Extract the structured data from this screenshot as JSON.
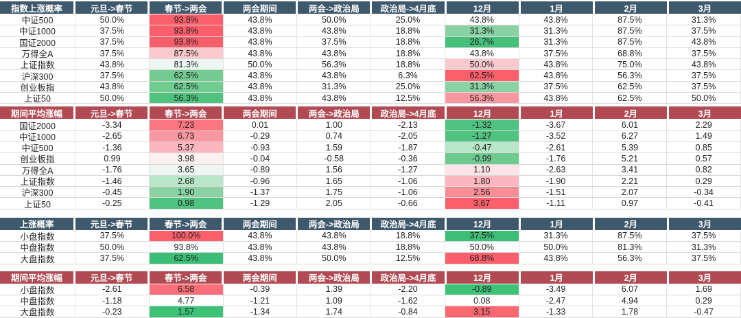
{
  "palette": {
    "header_blue": "#3E586C",
    "header_red": "#B14A52",
    "strong_red": "#FA5F6B",
    "strong_green": "#3DBE76",
    "grid_line": "#D9D9D9",
    "cell_text": "#1F1F1F",
    "header_text": "#FFFFFF"
  },
  "chart_data": [
    {
      "type": "table",
      "title": "指数上涨概率",
      "header_style": "blue",
      "columns": [
        "元旦->春节",
        "春节->两会",
        "两会期间",
        "两会->政治局",
        "政治局->4月底",
        "12月",
        "1月",
        "2月",
        "3月"
      ],
      "rows": [
        {
          "label": "中证500",
          "values": [
            "50.0%",
            "93.8%",
            "43.8%",
            "50.0%",
            "25.0%",
            "43.8%",
            "43.8%",
            "87.5%",
            "31.3%"
          ],
          "cell_colors": [
            null,
            "#FA5F6B",
            null,
            null,
            null,
            null,
            null,
            null,
            null
          ]
        },
        {
          "label": "中证1000",
          "values": [
            "37.5%",
            "93.8%",
            "43.8%",
            "43.8%",
            "18.8%",
            "31.3%",
            "31.3%",
            "87.5%",
            "37.5%"
          ],
          "cell_colors": [
            null,
            "#FA5F6B",
            null,
            null,
            null,
            "#8AD2A4",
            null,
            null,
            null
          ]
        },
        {
          "label": "国证2000",
          "values": [
            "37.5%",
            "93.8%",
            "43.8%",
            "37.5%",
            "18.8%",
            "26.7%",
            "31.3%",
            "87.5%",
            "43.8%"
          ],
          "cell_colors": [
            null,
            "#FA5F6B",
            null,
            null,
            null,
            "#44C07A",
            null,
            null,
            null
          ]
        },
        {
          "label": "万得全A",
          "values": [
            "37.5%",
            "87.5%",
            "43.8%",
            "43.8%",
            "18.8%",
            "43.8%",
            "37.5%",
            "68.8%",
            "37.5%"
          ],
          "cell_colors": [
            null,
            "#FBC9CE",
            null,
            null,
            null,
            null,
            null,
            null,
            null
          ]
        },
        {
          "label": "上证指数",
          "values": [
            "43.8%",
            "81.3%",
            "50.0%",
            "56.3%",
            "18.8%",
            "50.0%",
            "43.8%",
            "75.0%",
            "43.8%"
          ],
          "cell_colors": [
            null,
            "#EDF6F0",
            null,
            null,
            null,
            "#FBC9CE",
            null,
            null,
            null
          ]
        },
        {
          "label": "沪深300",
          "values": [
            "37.5%",
            "62.5%",
            "43.8%",
            "43.8%",
            "6.3%",
            "62.5%",
            "43.8%",
            "56.3%",
            "37.5%"
          ],
          "cell_colors": [
            null,
            "#72CB91",
            null,
            null,
            null,
            "#FA5F6B",
            null,
            null,
            null
          ]
        },
        {
          "label": "创业板指",
          "values": [
            "43.8%",
            "62.5%",
            "43.8%",
            "31.3%",
            "25.0%",
            "31.3%",
            "37.5%",
            "62.5%",
            "37.5%"
          ],
          "cell_colors": [
            null,
            "#72CB91",
            null,
            null,
            null,
            "#8AD2A4",
            null,
            null,
            null
          ]
        },
        {
          "label": "上证50",
          "values": [
            "50.0%",
            "56.3%",
            "43.8%",
            "43.8%",
            "12.5%",
            "56.3%",
            "43.8%",
            "62.5%",
            "50.0%"
          ],
          "cell_colors": [
            null,
            "#4EC27E",
            null,
            null,
            null,
            "#FA97A0",
            null,
            null,
            null
          ]
        }
      ]
    },
    {
      "type": "table",
      "title": "期间平均涨幅",
      "header_style": "red",
      "columns": [
        "元旦->春节",
        "春节->两会",
        "两会期间",
        "两会->政治局",
        "政治局->4月底",
        "12月",
        "1月",
        "2月",
        "3月"
      ],
      "rows": [
        {
          "label": "国证2000",
          "values": [
            "-3.34",
            "7.23",
            "0.01",
            "1.00",
            "-2.13",
            "-1.32",
            "-3.67",
            "6.01",
            "2.29"
          ],
          "cell_colors": [
            null,
            "#FA7680",
            null,
            null,
            null,
            "#4EC27E",
            null,
            null,
            null
          ]
        },
        {
          "label": "中证1000",
          "values": [
            "-2.65",
            "6.73",
            "-0.29",
            "0.74",
            "-2.05",
            "-1.27",
            "-3.52",
            "6.27",
            "1.49"
          ],
          "cell_colors": [
            null,
            "#FA97A0",
            null,
            null,
            null,
            "#50C380",
            null,
            null,
            null
          ]
        },
        {
          "label": "中证500",
          "values": [
            "-1.36",
            "5.37",
            "-0.93",
            "1.59",
            "-1.87",
            "-0.47",
            "-2.61",
            "5.39",
            "0.85"
          ],
          "cell_colors": [
            null,
            "#FBB7BD",
            null,
            null,
            null,
            "#B9E6C9",
            null,
            null,
            null
          ]
        },
        {
          "label": "创业板指",
          "values": [
            "0.99",
            "3.98",
            "-0.04",
            "-0.58",
            "-0.36",
            "-0.99",
            "-1.76",
            "5.21",
            "0.57"
          ],
          "cell_colors": [
            null,
            "#FDF0F1",
            null,
            null,
            null,
            "#6FCA90",
            null,
            null,
            null
          ]
        },
        {
          "label": "万得全A",
          "values": [
            "-1.76",
            "3.65",
            "-0.89",
            "1.56",
            "-1.27",
            "1.10",
            "-2.63",
            "3.41",
            "0.82"
          ],
          "cell_colors": [
            null,
            "#EDF6F0",
            null,
            null,
            null,
            "#FCE4E6",
            null,
            null,
            null
          ]
        },
        {
          "label": "上证指数",
          "values": [
            "-1.46",
            "2.68",
            "-0.96",
            "1.65",
            "-1.06",
            "1.80",
            "-1.90",
            "2.21",
            "0.29"
          ],
          "cell_colors": [
            null,
            "#B9E6C9",
            null,
            null,
            null,
            "#FBB7BD",
            null,
            null,
            null
          ]
        },
        {
          "label": "沪深300",
          "values": [
            "-0.45",
            "1.90",
            "-1.37",
            "1.75",
            "-1.06",
            "2.56",
            "-1.51",
            "2.07",
            "-0.34"
          ],
          "cell_colors": [
            null,
            "#8AD2A4",
            null,
            null,
            null,
            "#FA8C95",
            null,
            null,
            null
          ]
        },
        {
          "label": "上证50",
          "values": [
            "-0.25",
            "0.98",
            "-1.29",
            "2.05",
            "-0.66",
            "3.67",
            "-1.11",
            "0.97",
            "-0.41"
          ],
          "cell_colors": [
            null,
            "#4EC27E",
            null,
            null,
            null,
            "#FA5F6B",
            null,
            null,
            null
          ]
        }
      ]
    },
    {
      "type": "table",
      "title": "上涨概率",
      "header_style": "blue",
      "columns": [
        "元旦->春节",
        "春节->两会",
        "两会期间",
        "两会->政治局",
        "政治局->4月底",
        "12月",
        "1月",
        "2月",
        "3月"
      ],
      "rows": [
        {
          "label": "小盘指数",
          "values": [
            "37.5%",
            "100.0%",
            "43.8%",
            "43.8%",
            "18.8%",
            "37.5%",
            "31.3%",
            "87.5%",
            "37.5%"
          ],
          "cell_colors": [
            null,
            "#FA5F6B",
            null,
            null,
            null,
            "#3DBE76",
            null,
            null,
            null
          ]
        },
        {
          "label": "中盘指数",
          "values": [
            "50.0%",
            "93.8%",
            "43.8%",
            "43.8%",
            "18.8%",
            "50.0%",
            "50.0%",
            "81.3%",
            "31.3%"
          ],
          "cell_colors": [
            null,
            null,
            null,
            null,
            null,
            null,
            null,
            null,
            null
          ]
        },
        {
          "label": "大盘指数",
          "values": [
            "37.5%",
            "62.5%",
            "43.8%",
            "50.0%",
            "12.5%",
            "68.8%",
            "43.8%",
            "56.3%",
            "37.5%"
          ],
          "cell_colors": [
            null,
            "#3DBE76",
            null,
            null,
            null,
            "#FA5F6B",
            null,
            null,
            null
          ]
        }
      ]
    },
    {
      "type": "table",
      "title": "期间平均涨幅",
      "header_style": "red",
      "columns": [
        "元旦->春节",
        "春节->两会",
        "两会期间",
        "两会->政治局",
        "政治局->4月底",
        "12月",
        "1月",
        "2月",
        "3月"
      ],
      "rows": [
        {
          "label": "小盘指数",
          "values": [
            "-2.61",
            "6.58",
            "-0.39",
            "1.39",
            "-2.20",
            "-0.89",
            "-3.49",
            "6.07",
            "1.69"
          ],
          "cell_colors": [
            null,
            "#FA6F79",
            null,
            null,
            null,
            "#3DC378",
            null,
            null,
            null
          ]
        },
        {
          "label": "中盘指数",
          "values": [
            "-1.18",
            "4.77",
            "-1.21",
            "1.09",
            "-1.62",
            "0.08",
            "-2.47",
            "4.94",
            "0.29"
          ],
          "cell_colors": [
            null,
            null,
            null,
            null,
            null,
            null,
            null,
            null,
            null
          ]
        },
        {
          "label": "大盘指数",
          "values": [
            "-0.23",
            "1.57",
            "-1.34",
            "1.74",
            "-0.84",
            "3.15",
            "-1.33",
            "1.78",
            "-0.47"
          ],
          "cell_colors": [
            null,
            "#3DC378",
            null,
            null,
            null,
            "#FA6872",
            null,
            null,
            null
          ]
        }
      ]
    }
  ]
}
